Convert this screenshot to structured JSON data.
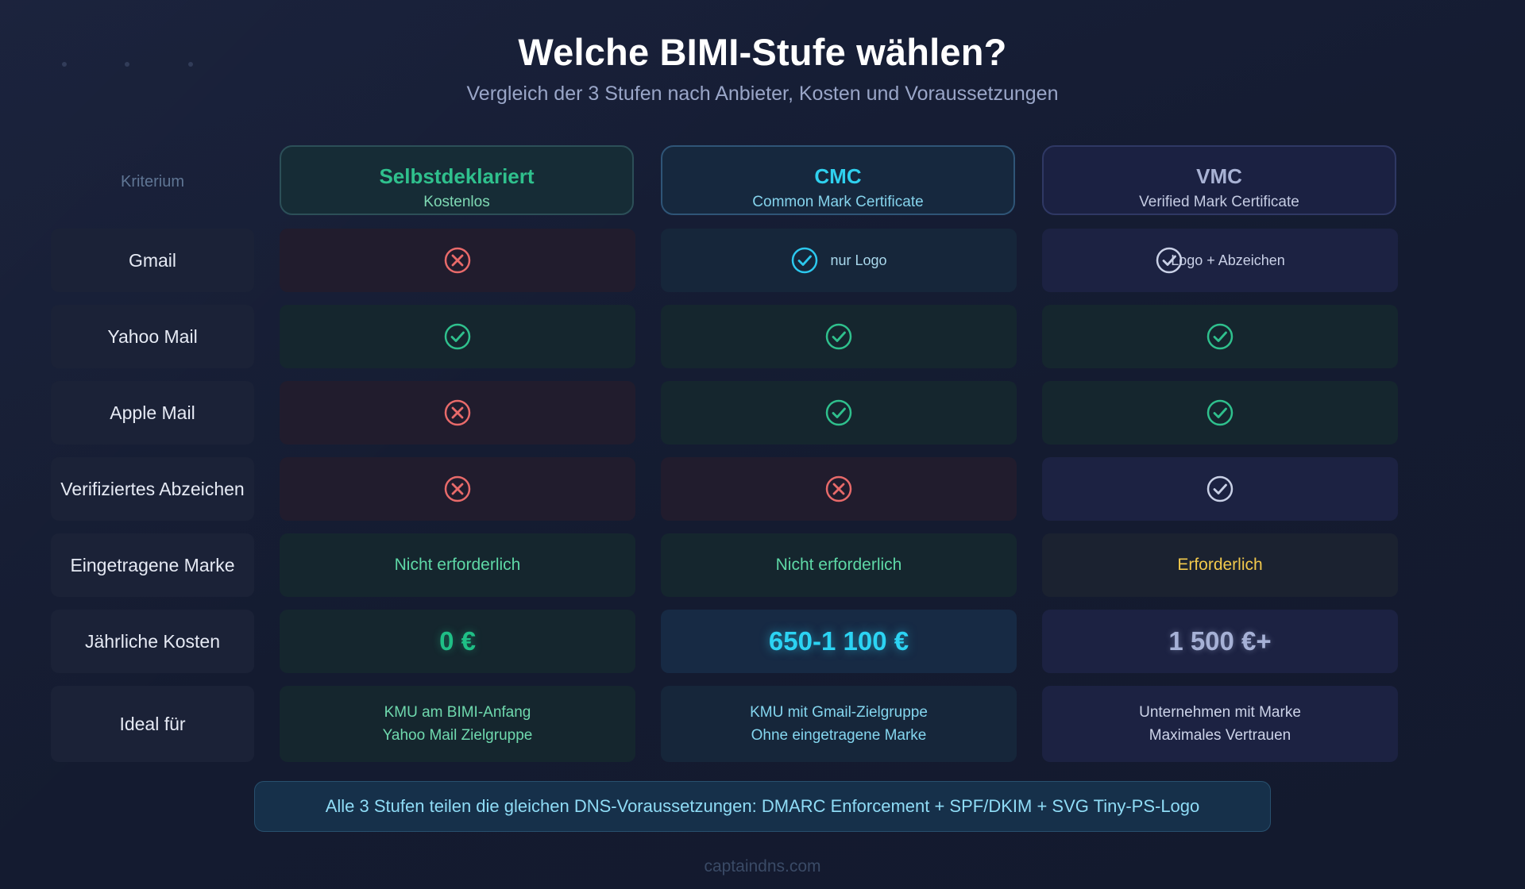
{
  "title": "Welche BIMI-Stufe wählen?",
  "subtitle": "Vergleich der 3 Stufen nach Anbieter, Kosten und Voraussetzungen",
  "table": {
    "criterion_header": "Kriterium",
    "columns": [
      {
        "name": "Selbstdeklariert",
        "sub": "Kostenlos"
      },
      {
        "name": "CMC",
        "sub": "Common Mark Certificate"
      },
      {
        "name": "VMC",
        "sub": "Verified Mark Certificate"
      }
    ],
    "rows": [
      {
        "label": "Gmail",
        "cells": [
          {
            "icon": "x-circle-icon"
          },
          {
            "icon": "check-circle-icon",
            "note": "nur Logo"
          },
          {
            "icon": "check-circle-icon",
            "note": "Logo + Abzeichen"
          }
        ]
      },
      {
        "label": "Yahoo Mail",
        "cells": [
          {
            "icon": "check-circle-icon"
          },
          {
            "icon": "check-circle-icon"
          },
          {
            "icon": "check-circle-icon"
          }
        ]
      },
      {
        "label": "Apple Mail",
        "cells": [
          {
            "icon": "x-circle-icon"
          },
          {
            "icon": "check-circle-icon"
          },
          {
            "icon": "check-circle-icon"
          }
        ]
      },
      {
        "label": "Verifiziertes Abzeichen",
        "cells": [
          {
            "icon": "x-circle-icon"
          },
          {
            "icon": "x-circle-icon"
          },
          {
            "icon": "check-circle-icon"
          }
        ]
      },
      {
        "label": "Eingetragene Marke",
        "cells": [
          {
            "text": "Nicht erforderlich"
          },
          {
            "text": "Nicht erforderlich"
          },
          {
            "text": "Erforderlich"
          }
        ]
      },
      {
        "label": "Jährliche Kosten",
        "cells": [
          {
            "text": "0 €"
          },
          {
            "text": "650-1 100 €"
          },
          {
            "text": "1 500 €+"
          }
        ]
      },
      {
        "label": "Ideal für",
        "cells": [
          {
            "lines": [
              "KMU am BIMI-Anfang",
              "Yahoo Mail Zielgruppe"
            ]
          },
          {
            "lines": [
              "KMU mit Gmail-Zielgruppe",
              "Ohne eingetragene Marke"
            ]
          },
          {
            "lines": [
              "Unternehmen mit Marke",
              "Maximales Vertrauen"
            ]
          }
        ]
      }
    ]
  },
  "footer_note": "Alle 3 Stufen teilen die gleichen DNS-Voraussetzungen: DMARC Enforcement + SPF/DKIM + SVG Tiny-PS-Logo",
  "brand": "captaindns.com",
  "colors": {
    "background": "#161d33",
    "self_accent": "#2fc08d",
    "cmc_accent": "#2fd0ee",
    "vmc_accent": "#a8b2d4",
    "cross": "#e86a6a",
    "check_green": "#2fc08d",
    "check_cmc": "#2cc8ee",
    "required": "#f2c94c"
  }
}
